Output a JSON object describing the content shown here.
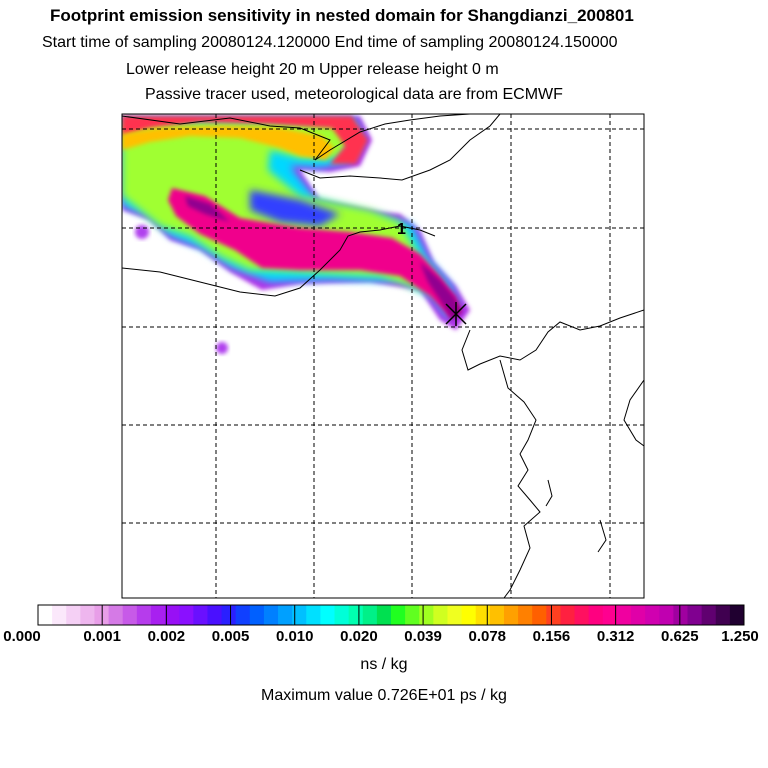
{
  "header": {
    "title": "Footprint emission sensitivity in nested domain for Shangdianzi_200801",
    "sampling_line": "Start time of sampling 20080124.120000     End time of sampling 20080124.150000",
    "height_line": "Lower release height   20 m          Upper release height    0 m",
    "tracer_line": "Passive tracer used, meteorological data are from ECMWF"
  },
  "map": {
    "release_marker_label": "1"
  },
  "colorbar": {
    "tick_labels": [
      "0.000",
      "0.001",
      "0.002",
      "0.005",
      "0.010",
      "0.020",
      "0.039",
      "0.078",
      "0.156",
      "0.312",
      "0.625",
      "1.250"
    ],
    "colors": [
      "#ffffff",
      "#fbe8fb",
      "#f5d0f5",
      "#eeb6ee",
      "#e89ee8",
      "#d57ae6",
      "#c75ae8",
      "#b63cec",
      "#a820f0",
      "#9810f5",
      "#8a10ff",
      "#6a10ff",
      "#4a10ff",
      "#2a20ff",
      "#1040ff",
      "#0060ff",
      "#0080ff",
      "#00a0ff",
      "#00c0ff",
      "#00e0ff",
      "#00ffff",
      "#00ffd8",
      "#00ffb0",
      "#00f088",
      "#00e050",
      "#20ff20",
      "#60ff20",
      "#a0ff20",
      "#d0ff20",
      "#f0ff20",
      "#ffff00",
      "#ffe000",
      "#ffc000",
      "#ffa000",
      "#ff8000",
      "#ff6000",
      "#ff4020",
      "#ff2040",
      "#ff1060",
      "#ff0080",
      "#ff0090",
      "#f000a0",
      "#e000a8",
      "#d000b0",
      "#c000b0",
      "#a000a0",
      "#800090",
      "#600070",
      "#400050",
      "#200030"
    ],
    "units": "ns / kg"
  },
  "footer": {
    "max_value": "Maximum value  0.726E+01 ps / kg"
  }
}
